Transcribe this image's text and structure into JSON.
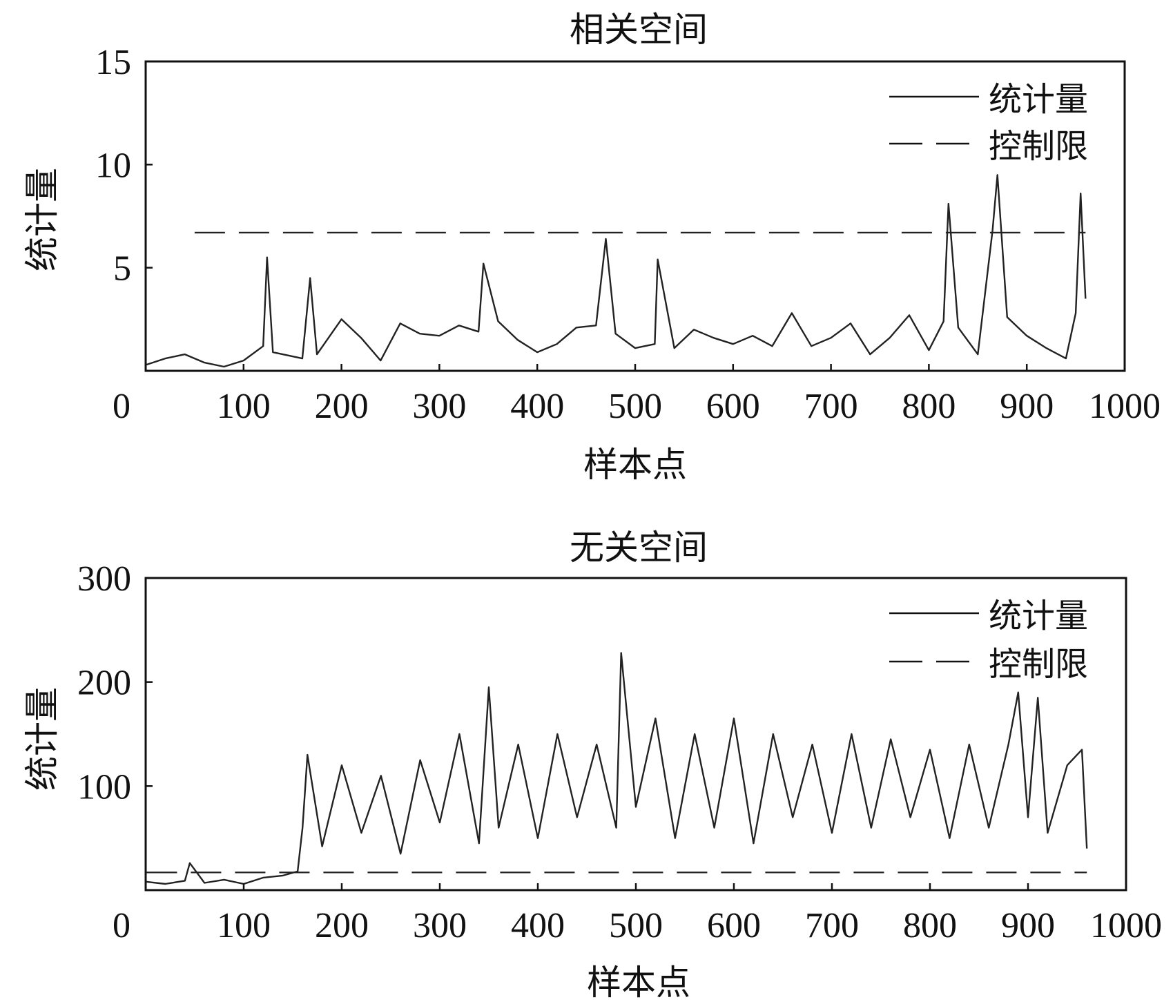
{
  "chart_data": [
    {
      "type": "line",
      "title": "相关空间",
      "xlabel": "样本点",
      "ylabel": "统计量",
      "xlim": [
        0,
        1000
      ],
      "ylim": [
        0,
        15
      ],
      "x_ticks": [
        0,
        100,
        200,
        300,
        400,
        500,
        600,
        700,
        800,
        900,
        1000
      ],
      "y_ticks": [
        5,
        10,
        15
      ],
      "legend_position": "top-right",
      "series": [
        {
          "name": "统计量",
          "style": "solid",
          "x": [
            1,
            20,
            40,
            60,
            80,
            100,
            120,
            124,
            130,
            160,
            168,
            175,
            200,
            220,
            240,
            260,
            280,
            300,
            320,
            340,
            345,
            360,
            380,
            400,
            420,
            440,
            460,
            470,
            480,
            500,
            520,
            523,
            540,
            560,
            580,
            600,
            620,
            640,
            660,
            680,
            700,
            720,
            740,
            760,
            780,
            800,
            815,
            820,
            830,
            850,
            865,
            870,
            880,
            900,
            920,
            940,
            950,
            955,
            960
          ],
          "y": [
            0.3,
            0.6,
            0.8,
            0.4,
            0.2,
            0.5,
            1.2,
            5.5,
            0.9,
            0.6,
            4.5,
            0.8,
            2.5,
            1.6,
            0.5,
            2.3,
            1.8,
            1.7,
            2.2,
            1.9,
            5.2,
            2.4,
            1.5,
            0.9,
            1.3,
            2.1,
            2.2,
            6.4,
            1.8,
            1.1,
            1.3,
            5.4,
            1.1,
            2.0,
            1.6,
            1.3,
            1.7,
            1.2,
            2.8,
            1.2,
            1.6,
            2.3,
            0.8,
            1.6,
            2.7,
            1.0,
            2.4,
            8.1,
            2.1,
            0.8,
            6.8,
            9.5,
            2.6,
            1.7,
            1.1,
            0.6,
            2.8,
            8.6,
            3.5
          ]
        },
        {
          "name": "控制限",
          "style": "dashed",
          "x": [
            50,
            960
          ],
          "y": [
            6.7,
            6.7
          ]
        }
      ]
    },
    {
      "type": "line",
      "title": "无关空间",
      "xlabel": "样本点",
      "ylabel": "统计量",
      "xlim": [
        0,
        1000
      ],
      "ylim": [
        0,
        300
      ],
      "x_ticks": [
        0,
        100,
        200,
        300,
        400,
        500,
        600,
        700,
        800,
        900,
        1000
      ],
      "y_ticks": [
        100,
        200,
        300
      ],
      "legend_position": "top-right",
      "series": [
        {
          "name": "统计量",
          "style": "solid",
          "x": [
            1,
            20,
            40,
            45,
            60,
            80,
            100,
            120,
            140,
            155,
            160,
            165,
            180,
            200,
            220,
            240,
            260,
            280,
            300,
            320,
            340,
            350,
            360,
            380,
            400,
            420,
            440,
            460,
            480,
            485,
            500,
            520,
            540,
            560,
            580,
            600,
            620,
            640,
            660,
            680,
            700,
            720,
            740,
            760,
            780,
            800,
            820,
            840,
            860,
            880,
            890,
            900,
            910,
            920,
            940,
            955,
            960
          ],
          "y": [
            8,
            6,
            9,
            26,
            7,
            10,
            6,
            12,
            14,
            18,
            60,
            130,
            42,
            120,
            55,
            110,
            35,
            125,
            65,
            150,
            45,
            195,
            60,
            140,
            50,
            150,
            70,
            140,
            60,
            228,
            80,
            165,
            50,
            150,
            60,
            165,
            45,
            150,
            70,
            140,
            55,
            150,
            60,
            145,
            70,
            135,
            50,
            140,
            60,
            140,
            190,
            70,
            185,
            55,
            120,
            135,
            40
          ]
        },
        {
          "name": "控制限",
          "style": "dashed",
          "x": [
            1,
            960
          ],
          "y": [
            17,
            17
          ]
        }
      ]
    }
  ]
}
